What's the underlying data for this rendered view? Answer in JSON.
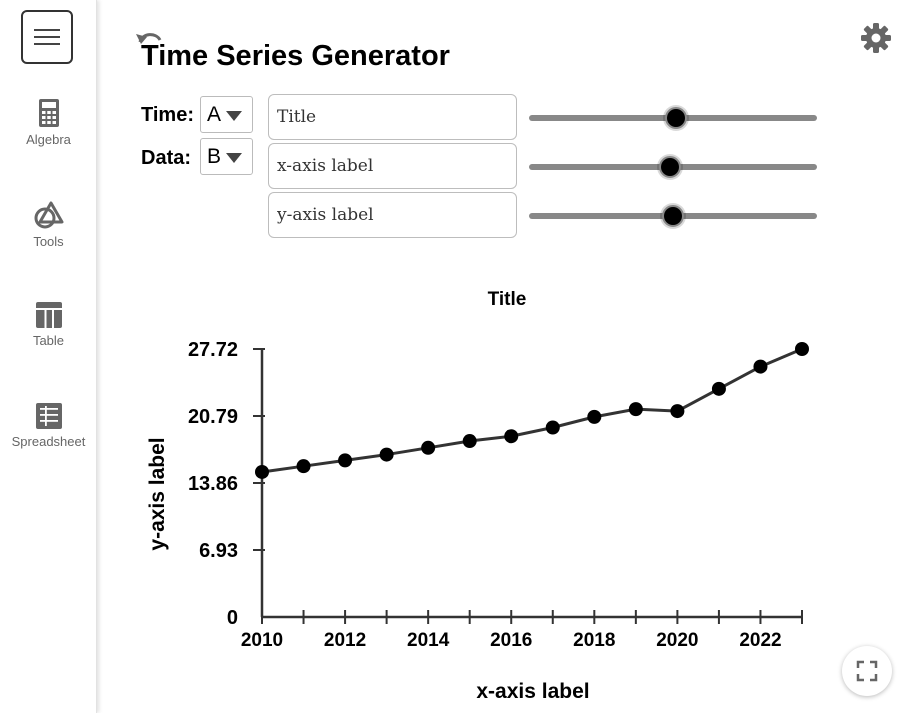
{
  "sidebar": {
    "items": [
      {
        "label": "Algebra",
        "icon": "calculator-icon"
      },
      {
        "label": "Tools",
        "icon": "tools-icon"
      },
      {
        "label": "Table",
        "icon": "table-icon"
      },
      {
        "label": "Spreadsheet",
        "icon": "spreadsheet-icon"
      }
    ]
  },
  "header": {
    "title": "Time Series Generator"
  },
  "controls": {
    "time_label": "Time:",
    "time_value": "A",
    "data_label": "Data:",
    "data_value": "B",
    "title_input": "Title",
    "xlabel_input": "x-axis label",
    "ylabel_input": "y-axis label",
    "slider_values": [
      0.51,
      0.49,
      0.5
    ]
  },
  "chart_data": {
    "type": "line",
    "title": "Title",
    "xlabel": "x-axis label",
    "ylabel": "y-axis label",
    "x": [
      2010,
      2011,
      2012,
      2013,
      2014,
      2015,
      2016,
      2017,
      2018,
      2019,
      2020,
      2021,
      2022,
      2023
    ],
    "values": [
      15.0,
      15.6,
      16.2,
      16.8,
      17.5,
      18.2,
      18.7,
      19.6,
      20.7,
      21.5,
      21.3,
      23.6,
      25.9,
      27.72
    ],
    "xlim": [
      2010,
      2023
    ],
    "ylim": [
      0,
      27.72
    ],
    "yticks": [
      0,
      6.93,
      13.86,
      20.79,
      27.72
    ],
    "ytick_labels": [
      "0",
      "6.93",
      "13.86",
      "20.79",
      "27.72"
    ],
    "xtick_labels": [
      "2010",
      "2012",
      "2014",
      "2016",
      "2018",
      "2020",
      "2022"
    ],
    "grid": false,
    "legend": "none"
  }
}
